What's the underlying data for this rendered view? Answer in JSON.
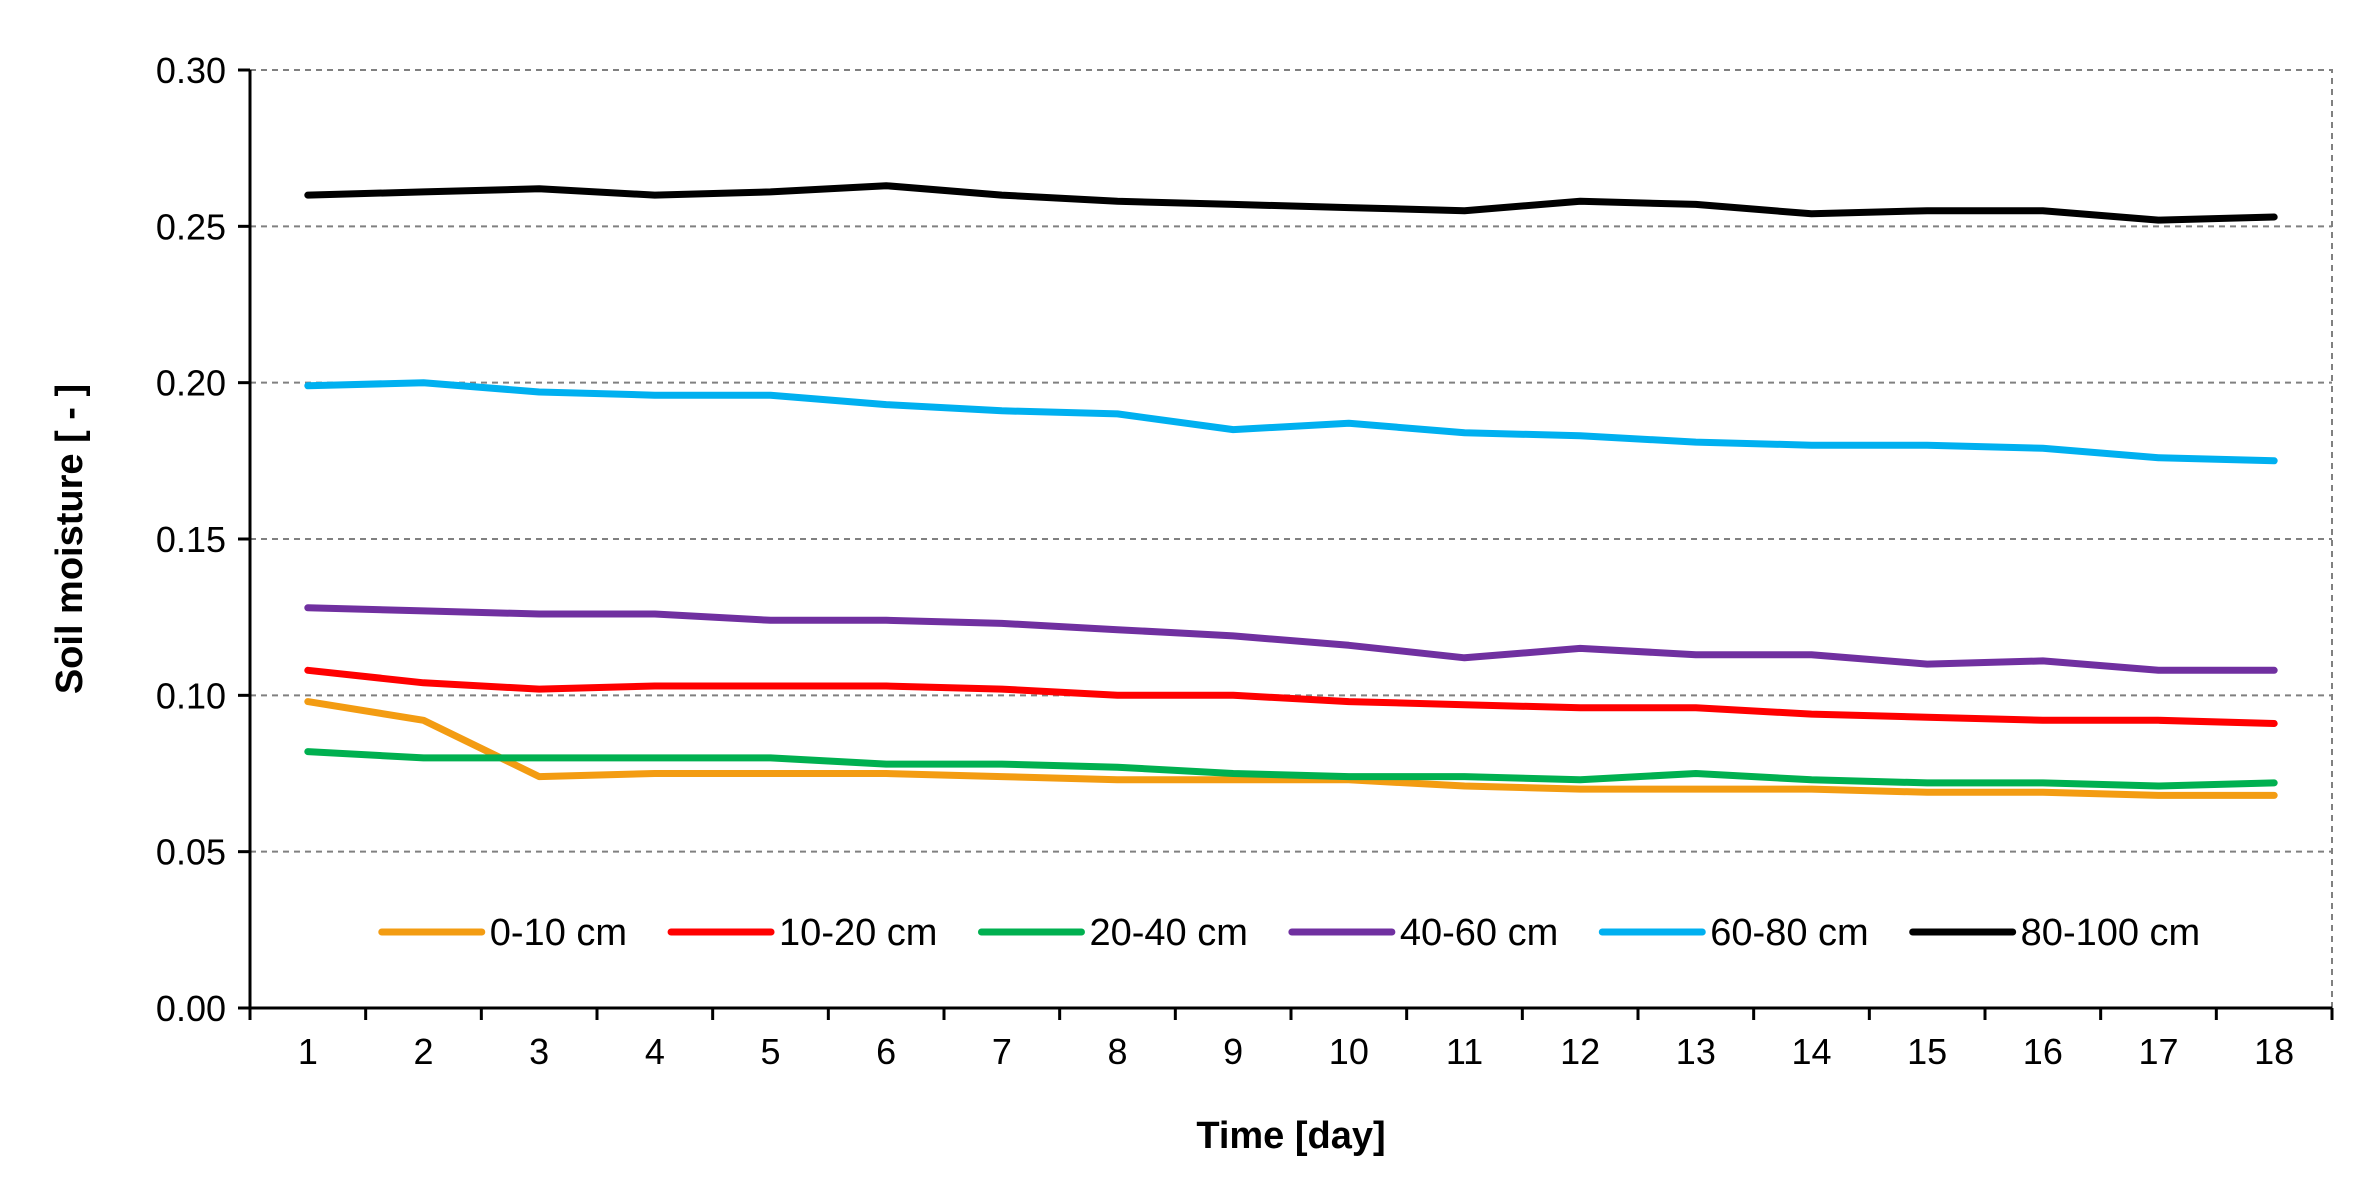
{
  "chart_data": {
    "type": "line",
    "title": "",
    "xlabel": "Time [day]",
    "ylabel": "Soil moisture [ - ]",
    "x": [
      1,
      2,
      3,
      4,
      5,
      6,
      7,
      8,
      9,
      10,
      11,
      12,
      13,
      14,
      15,
      16,
      17,
      18
    ],
    "ylim": [
      0,
      0.3
    ],
    "yticks": [
      "0.00",
      "0.05",
      "0.10",
      "0.15",
      "0.20",
      "0.25",
      "0.30"
    ],
    "grid": "horizontal dashed",
    "legend_position": "bottom-inside",
    "series": [
      {
        "name": "0-10 cm",
        "color": "#f39c12",
        "values": [
          0.098,
          0.092,
          0.074,
          0.075,
          0.075,
          0.075,
          0.074,
          0.073,
          0.073,
          0.073,
          0.071,
          0.07,
          0.07,
          0.07,
          0.069,
          0.069,
          0.068,
          0.068
        ]
      },
      {
        "name": "10-20 cm",
        "color": "#ff0000",
        "values": [
          0.108,
          0.104,
          0.102,
          0.103,
          0.103,
          0.103,
          0.102,
          0.1,
          0.1,
          0.098,
          0.097,
          0.096,
          0.096,
          0.094,
          0.093,
          0.092,
          0.092,
          0.091
        ]
      },
      {
        "name": "20-40 cm",
        "color": "#00b050",
        "values": [
          0.082,
          0.08,
          0.08,
          0.08,
          0.08,
          0.078,
          0.078,
          0.077,
          0.075,
          0.074,
          0.074,
          0.073,
          0.075,
          0.073,
          0.072,
          0.072,
          0.071,
          0.072
        ]
      },
      {
        "name": "40-60 cm",
        "color": "#7030a0",
        "values": [
          0.128,
          0.127,
          0.126,
          0.126,
          0.124,
          0.124,
          0.123,
          0.121,
          0.119,
          0.116,
          0.112,
          0.115,
          0.113,
          0.113,
          0.11,
          0.111,
          0.108,
          0.108
        ]
      },
      {
        "name": "60-80 cm",
        "color": "#00b0f0",
        "values": [
          0.199,
          0.2,
          0.197,
          0.196,
          0.196,
          0.193,
          0.191,
          0.19,
          0.185,
          0.187,
          0.184,
          0.183,
          0.181,
          0.18,
          0.18,
          0.179,
          0.176,
          0.175
        ]
      },
      {
        "name": "80-100 cm",
        "color": "#000000",
        "values": [
          0.26,
          0.261,
          0.262,
          0.26,
          0.261,
          0.263,
          0.26,
          0.258,
          0.257,
          0.256,
          0.255,
          0.258,
          0.257,
          0.254,
          0.255,
          0.255,
          0.252,
          0.253
        ]
      }
    ]
  }
}
